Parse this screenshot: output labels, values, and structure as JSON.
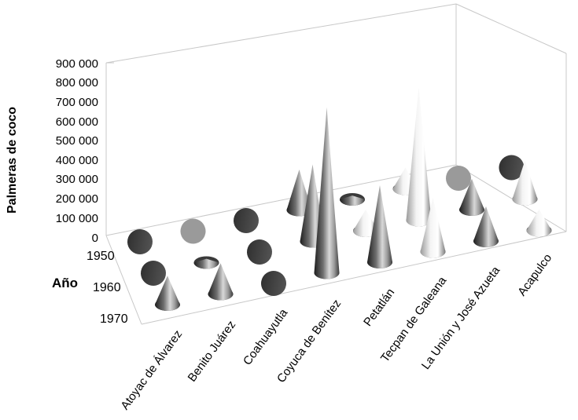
{
  "chart_data": {
    "type": "3d-cone",
    "ylabel": "Palmeras  de coco",
    "zlabel": "Año",
    "y_ticks": [
      "900 000",
      "800 000",
      "700 000",
      "600 000",
      "500 000",
      "400 000",
      "300 000",
      "200 000",
      "100 000",
      "0"
    ],
    "ylim": [
      0,
      900000
    ],
    "years": [
      "1950",
      "1960",
      "1970"
    ],
    "categories": [
      "Atoyac de Álvarez",
      "Benito Juárez",
      "Coahuayutla",
      "Coyuca de Benítez",
      "Petatlán",
      "Tecpan de Galeana",
      "La Unión y José Azueta",
      "Acapulco"
    ],
    "series": [
      {
        "name": "1950",
        "values": [
          0,
          0,
          0,
          210000,
          20000,
          110000,
          0,
          0
        ]
      },
      {
        "name": "1960",
        "values": [
          0,
          20000,
          0,
          400000,
          110000,
          690000,
          160000,
          200000
        ]
      },
      {
        "name": "1970",
        "values": [
          150000,
          160000,
          0,
          860000,
          400000,
          280000,
          180000,
          110000
        ]
      }
    ],
    "colors": {
      "dark": "#2a2a2a",
      "mid": "#8a8a8a",
      "light": "#e8e8e8",
      "frame": "#c8c8c8"
    }
  }
}
